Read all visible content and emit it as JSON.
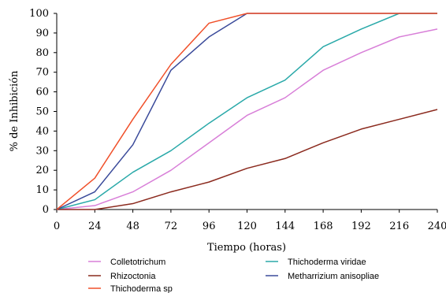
{
  "chart_data": {
    "type": "line",
    "xlabel": "Tiempo (horas)",
    "ylabel": "% de Inhibición",
    "x": [
      0,
      24,
      48,
      72,
      96,
      120,
      144,
      168,
      192,
      216,
      240
    ],
    "xlim": [
      0,
      240
    ],
    "ylim": [
      0,
      100
    ],
    "yticks": [
      0,
      10,
      20,
      30,
      40,
      50,
      60,
      70,
      80,
      90,
      100
    ],
    "grid": false,
    "legend_position": "bottom",
    "series": [
      {
        "name": "Colletotrichum",
        "color": "#d87fd8",
        "values": [
          0,
          2,
          9,
          20,
          34,
          48,
          57,
          71,
          80,
          88,
          92
        ]
      },
      {
        "name": "Thichoderma viridae",
        "color": "#2aa9a9",
        "values": [
          0,
          5,
          19,
          30,
          44,
          57,
          66,
          83,
          92,
          100,
          100
        ]
      },
      {
        "name": "Rhizoctonia",
        "color": "#8b2a1e",
        "values": [
          0,
          0,
          3,
          9,
          14,
          21,
          26,
          34,
          41,
          46,
          51
        ]
      },
      {
        "name": "Metharrizium anisopliae",
        "color": "#3a4a9a",
        "values": [
          0,
          9,
          33,
          71,
          88,
          100,
          100,
          100,
          100,
          100,
          100
        ]
      },
      {
        "name": "Thichoderma sp",
        "color": "#f0502a",
        "values": [
          0,
          16,
          46,
          74,
          95,
          100,
          100,
          100,
          100,
          100,
          100
        ]
      }
    ]
  }
}
